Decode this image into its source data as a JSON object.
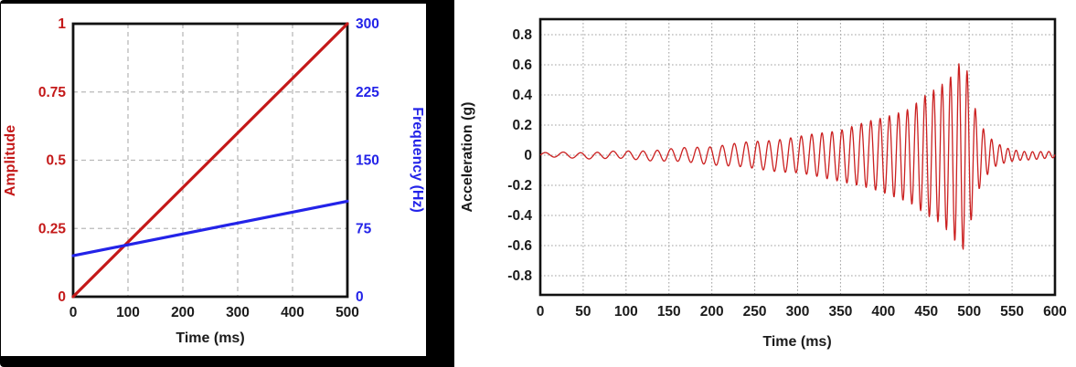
{
  "colors": {
    "amplitude_red": "#c41919",
    "frequency_blue": "#2323e8",
    "waveform_red": "#cb2020",
    "grid_gray_left": "#b9b9b9",
    "grid_gray_right": "#a0a0a0",
    "frame_black": "#111111",
    "panel_border_black": "#000000"
  },
  "chart_data": [
    {
      "id": "amplitude-frequency-chart",
      "type": "line",
      "title": "",
      "xlabel": "Time (ms)",
      "xlim": [
        0,
        500
      ],
      "xticks": [
        0,
        100,
        200,
        300,
        400,
        500
      ],
      "ylabel_left": "Amplitude",
      "ylim_left": [
        0,
        1
      ],
      "yticks_left": [
        0,
        0.25,
        0.5,
        0.75,
        1
      ],
      "ylabel_right": "Frequency (Hz)",
      "ylim_right": [
        0,
        300
      ],
      "yticks_right": [
        0,
        75,
        150,
        225,
        300
      ],
      "grid": "dashed",
      "legend": "none",
      "series": [
        {
          "name": "Amplitude",
          "axis": "left",
          "color": "#c41919",
          "points": [
            [
              0,
              0
            ],
            [
              500,
              1
            ]
          ]
        },
        {
          "name": "Frequency",
          "axis": "right",
          "color": "#2323e8",
          "points": [
            [
              0,
              45
            ],
            [
              500,
              105
            ]
          ]
        }
      ]
    },
    {
      "id": "acceleration-chart",
      "type": "line",
      "title": "",
      "xlabel": "Time (ms)",
      "xlim": [
        0,
        600
      ],
      "xticks": [
        0,
        50,
        100,
        150,
        200,
        250,
        300,
        350,
        400,
        450,
        500,
        550,
        600
      ],
      "ylabel": "Acceleration (g)",
      "ylim": [
        -0.93,
        0.9
      ],
      "yticks": [
        -0.8,
        -0.6,
        -0.4,
        -0.2,
        0,
        0.2,
        0.4,
        0.6,
        0.8
      ],
      "grid": "dotted",
      "legend": "none",
      "series": [
        {
          "name": "Acceleration",
          "color": "#cb2020",
          "signal": "chirp",
          "chirp": {
            "f0_hz": 45,
            "f1_hz": 105,
            "sweep_start_ms": 0,
            "sweep_end_ms": 500
          },
          "peak_positive_g": 0.6,
          "peak_negative_g": -0.65,
          "peak_time_ms": 490,
          "envelope_keypoints": [
            [
              0,
              0.015
            ],
            [
              50,
              0.02
            ],
            [
              100,
              0.025
            ],
            [
              150,
              0.04
            ],
            [
              200,
              0.06
            ],
            [
              250,
              0.09
            ],
            [
              300,
              0.12
            ],
            [
              350,
              0.17
            ],
            [
              400,
              0.25
            ],
            [
              430,
              0.31
            ],
            [
              450,
              0.4
            ],
            [
              465,
              0.45
            ],
            [
              478,
              0.52
            ],
            [
              488,
              0.61
            ],
            [
              495,
              0.63
            ],
            [
              500,
              0.5
            ],
            [
              505,
              0.35
            ],
            [
              512,
              0.22
            ],
            [
              520,
              0.14
            ],
            [
              530,
              0.08
            ],
            [
              545,
              0.045
            ],
            [
              560,
              0.03
            ],
            [
              600,
              0.02
            ]
          ]
        }
      ]
    }
  ]
}
